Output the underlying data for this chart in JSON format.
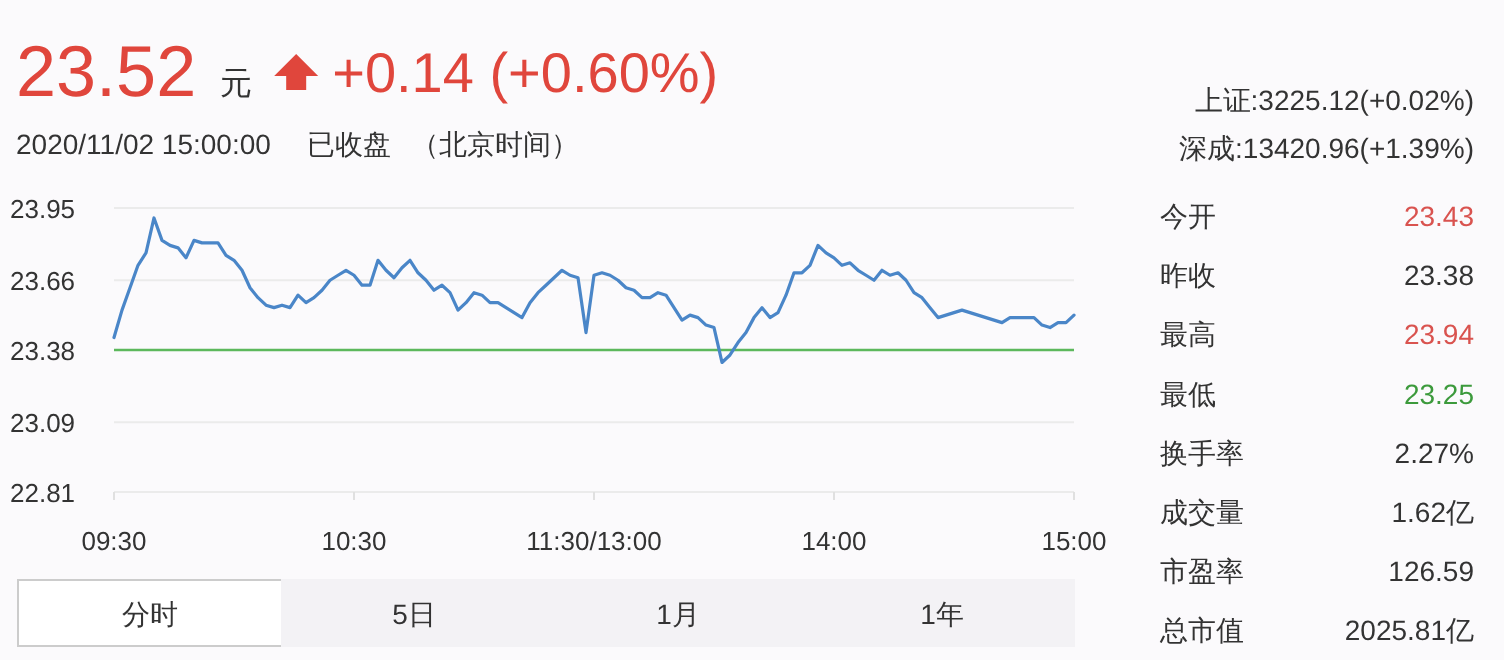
{
  "chart_data": [
    {
      "type": "other",
      "annotations": [
        "23.52",
        "元",
        "+0.14 (+0.60%)",
        "2020/11/02 15:00:00",
        "已收盘",
        "（北京时间）"
      ],
      "colors": [
        "#e0463c",
        "#333333",
        "#e0463c",
        "#333333",
        "#333333",
        "#333333"
      ]
    },
    {
      "type": "line",
      "categories": [
        "09:30",
        null,
        null,
        null,
        null,
        null,
        null,
        null,
        null,
        null,
        null,
        null,
        null,
        null,
        null,
        null,
        null,
        null,
        null,
        null,
        null,
        null,
        null,
        null,
        null,
        null,
        null,
        null,
        null,
        null,
        "10:30",
        null,
        null,
        null,
        null,
        null,
        null,
        null,
        null,
        null,
        null,
        null,
        null,
        null,
        null,
        null,
        null,
        null,
        null,
        null,
        null,
        null,
        null,
        null,
        null,
        null,
        null,
        null,
        null,
        null,
        "11:30/13:00",
        null,
        null,
        null,
        null,
        null,
        null,
        null,
        null,
        null,
        null,
        null,
        null,
        null,
        null,
        null,
        null,
        null,
        null,
        null,
        null,
        null,
        null,
        null,
        null,
        null,
        null,
        null,
        null,
        null,
        "14:00",
        null,
        null,
        null,
        null,
        null,
        null,
        null,
        null,
        null,
        null,
        null,
        null,
        null,
        null,
        null,
        null,
        null,
        null,
        null,
        null,
        null,
        null,
        null,
        null,
        null,
        null,
        null,
        null,
        null,
        "15:00"
      ],
      "series": [
        {
          "color": "#4a86c8",
          "values": [
            23.43,
            23.54,
            23.63,
            23.72,
            23.77,
            23.91,
            23.82,
            23.8,
            23.79,
            23.75,
            23.82,
            23.81,
            23.81,
            23.81,
            23.76,
            23.74,
            23.7,
            23.63,
            23.59,
            23.56,
            23.55,
            23.56,
            23.55,
            23.6,
            23.57,
            23.59,
            23.62,
            23.66,
            23.68,
            23.7,
            23.68,
            23.64,
            23.64,
            23.74,
            23.7,
            23.67,
            23.71,
            23.74,
            23.69,
            23.66,
            23.62,
            23.64,
            23.61,
            23.54,
            23.57,
            23.61,
            23.6,
            23.57,
            23.57,
            23.55,
            23.53,
            23.51,
            23.57,
            23.61,
            23.64,
            23.67,
            23.7,
            23.68,
            23.67,
            23.45,
            23.68,
            23.69,
            23.68,
            23.66,
            23.63,
            23.62,
            23.59,
            23.59,
            23.61,
            23.6,
            23.55,
            23.5,
            23.52,
            23.51,
            23.48,
            23.47,
            23.33,
            23.36,
            23.41,
            23.45,
            23.51,
            23.55,
            23.51,
            23.53,
            23.6,
            23.69,
            23.69,
            23.72,
            23.8,
            23.77,
            23.75,
            23.72,
            23.73,
            23.7,
            23.68,
            23.66,
            23.7,
            23.68,
            23.69,
            23.66,
            23.61,
            23.59,
            23.55,
            23.51,
            23.52,
            23.53,
            23.54,
            23.53,
            23.52,
            23.51,
            23.5,
            23.49,
            23.51,
            23.51,
            23.51,
            23.51,
            23.48,
            23.47,
            23.49,
            23.49,
            23.52
          ]
        }
      ],
      "ylim": [
        22.81,
        23.95
      ],
      "yticks": [
        22.81,
        23.09,
        23.38,
        23.66,
        23.95
      ],
      "grid": "y",
      "ref_lines": [
        {
          "axis": "y",
          "value": 23.38,
          "color": "#5cb85c"
        }
      ],
      "line_style": "solid",
      "marker": "none"
    },
    {
      "type": "other",
      "annotations": [
        "上证:3225.12(+0.02%)",
        "深成:13420.96(+1.39%)",
        "今开",
        "23.43",
        "昨收",
        "23.38",
        "最高",
        "23.94",
        "最低",
        "23.25",
        "换手率",
        "2.27%",
        "成交量",
        "1.62亿",
        "市盈率",
        "126.59",
        "总市值",
        "2025.81亿"
      ],
      "colors": [
        "#333333",
        "#333333",
        "#333333",
        "#d9534f",
        "#333333",
        "#333333",
        "#333333",
        "#d9534f",
        "#333333",
        "#3c9a3c",
        "#333333",
        "#333333",
        "#333333",
        "#333333",
        "#333333",
        "#333333",
        "#333333",
        "#333333"
      ]
    },
    {
      "type": "other",
      "annotations": [
        "分时",
        "5日",
        "1月",
        "1年"
      ],
      "colors": [
        "#333333",
        "#333333",
        "#333333",
        "#333333"
      ]
    }
  ]
}
